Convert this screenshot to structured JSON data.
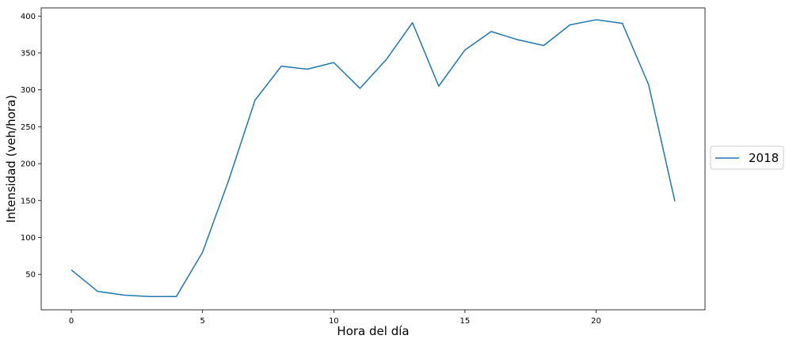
{
  "chart_data": {
    "type": "line",
    "title": "",
    "xlabel": "Hora del día",
    "ylabel": "Intensidad (veh/hora)",
    "x": [
      0,
      1,
      2,
      3,
      4,
      5,
      6,
      7,
      8,
      9,
      10,
      11,
      12,
      13,
      14,
      15,
      16,
      17,
      18,
      19,
      20,
      21,
      22,
      23
    ],
    "series": [
      {
        "name": "2018",
        "color": "#1f77b4",
        "values": [
          56,
          27,
          22,
          20,
          20,
          80,
          178,
          286,
          332,
          328,
          337,
          302,
          341,
          391,
          305,
          354,
          379,
          368,
          360,
          388,
          395,
          390,
          307,
          149
        ]
      }
    ],
    "xlim": [
      -1.15,
      24.15
    ],
    "ylim": [
      2,
      411
    ],
    "xticks": [
      0,
      5,
      10,
      15,
      20
    ],
    "yticks": [
      50,
      100,
      150,
      200,
      250,
      300,
      350,
      400
    ],
    "grid": false,
    "legend_position": "right-outside"
  }
}
